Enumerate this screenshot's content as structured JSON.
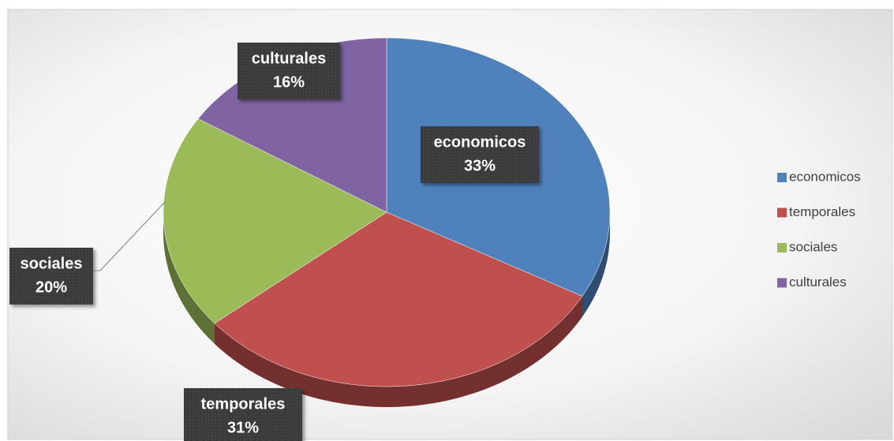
{
  "chart_data": {
    "type": "pie",
    "categories": [
      "economicos",
      "temporales",
      "sociales",
      "culturales"
    ],
    "values": [
      33,
      31,
      20,
      16
    ],
    "value_labels": [
      "33%",
      "31%",
      "20%",
      "16%"
    ],
    "colors": [
      "#4f81bd",
      "#c0504d",
      "#9bbb59",
      "#8064a2"
    ],
    "legend": "right"
  }
}
